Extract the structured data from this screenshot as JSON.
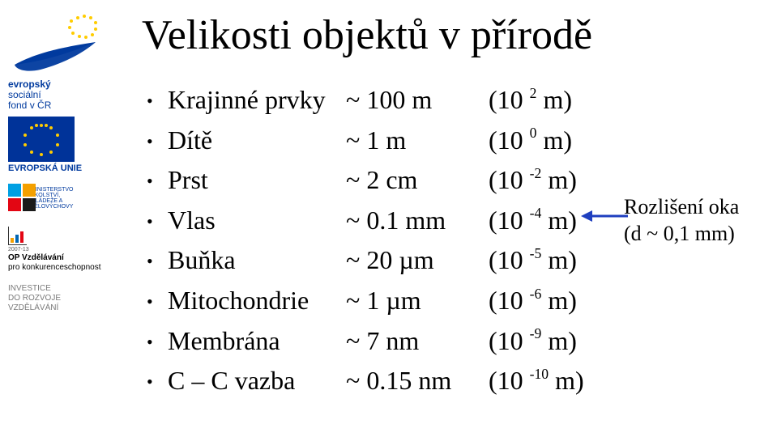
{
  "title": "Velikosti objektů v přírodě",
  "bullet_char": "•",
  "rows": [
    {
      "name": "Krajinné prvky",
      "approx": "~ 100 m",
      "paren_pre": "(10 ",
      "exp": "2",
      "paren_post": " m)"
    },
    {
      "name": "Dítě",
      "approx": "~ 1 m",
      "paren_pre": "(10 ",
      "exp": "0",
      "paren_post": " m)"
    },
    {
      "name": "Prst",
      "approx": "~ 2 cm",
      "paren_pre": "(10 ",
      "exp": "-2",
      "paren_post": " m)"
    },
    {
      "name": "Vlas",
      "approx": "~ 0.1 mm",
      "paren_pre": "(10 ",
      "exp": "-4",
      "paren_post": " m)"
    },
    {
      "name": "Buňka",
      "approx": "~ 20 µm",
      "paren_pre": "(10 ",
      "exp": "-5",
      "paren_post": " m)"
    },
    {
      "name": "Mitochondrie",
      "approx": "~ 1 µm",
      "paren_pre": "(10 ",
      "exp": "-6",
      "paren_post": " m)"
    },
    {
      "name": "Membrána",
      "approx": "~ 7 nm",
      "paren_pre": "(10 ",
      "exp": "-9",
      "paren_post": " m)"
    },
    {
      "name": "C – C vazba",
      "approx": "~ 0.15 nm",
      "paren_pre": "(10 ",
      "exp": "-10",
      "paren_post": " m)"
    }
  ],
  "annotation": {
    "line1": "Rozlišení oka",
    "line2": "(d ~ 0,1 mm)",
    "target_row_index": 3,
    "arrow": {
      "color": "#1f3fbf",
      "stroke_width": 3
    }
  },
  "sidebar": {
    "esf": {
      "swoosh_color": "#003a9e",
      "star_color": "#ffcc00",
      "line1": "evropský",
      "line2": "sociální",
      "line3": "fond v ČR"
    },
    "eu": {
      "bg": "#003399",
      "star_color": "#ffcc00",
      "label": "EVROPSKÁ UNIE"
    },
    "msmt": {
      "colors": {
        "tl": "#00a0e3",
        "tr": "#f4a000",
        "bl": "#e30613",
        "br": "#1a1a1a"
      },
      "text": "MINISTERSTVO ŠKOLSTVÍ,\nMLÁDEŽE A TĚLOVÝCHOVY"
    },
    "op": {
      "years": "2007-13",
      "line1": "OP Vzdělávání",
      "line2": "pro konkurenceschopnost"
    },
    "invest": {
      "line1": "INVESTICE",
      "line2": "DO ROZVOJE",
      "line3": "VZDĚLÁVÁNÍ"
    }
  },
  "colors": {
    "text": "#000000",
    "background": "#ffffff"
  }
}
